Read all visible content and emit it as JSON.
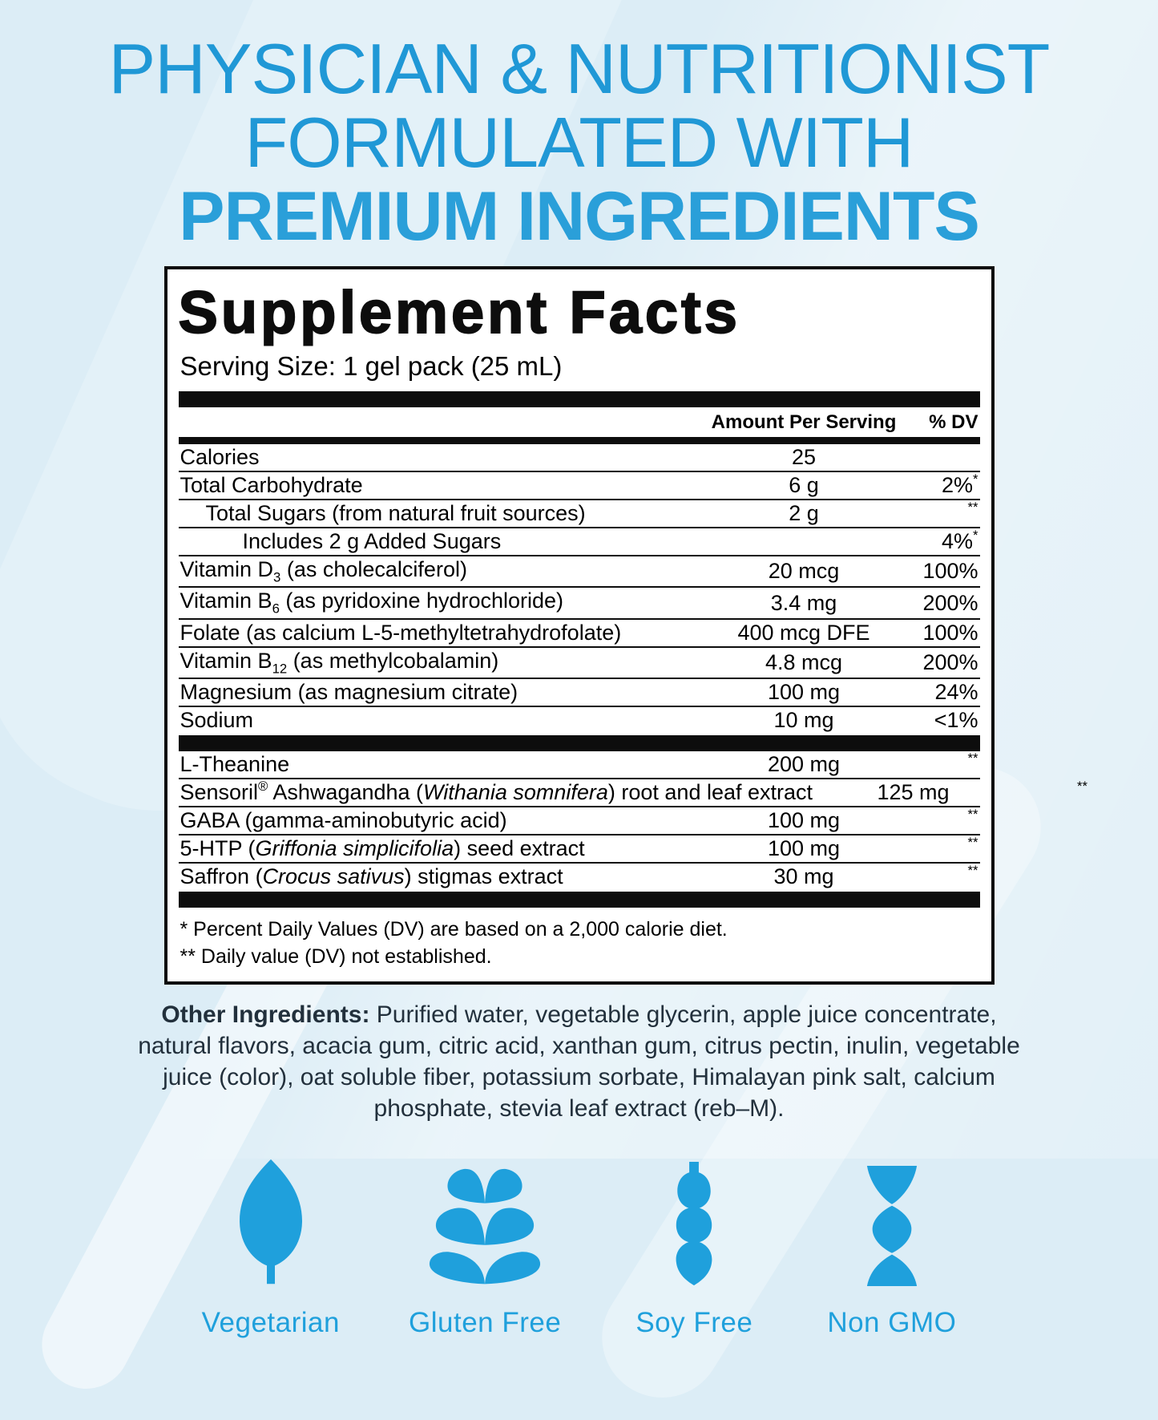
{
  "colors": {
    "accent_blue": "#1fa0dc",
    "heading_blue": "#2098d6",
    "panel_border": "#0d0d0d",
    "background": "#dcedf6",
    "dark_text": "#22303c"
  },
  "heading": {
    "line1": "PHYSICIAN & NUTRITIONIST",
    "line2": "FORMULATED WITH",
    "line3": "PREMIUM INGREDIENTS"
  },
  "supplement_facts": {
    "title": "Supplement Facts",
    "serving_size": "Serving Size: 1 gel pack (25 mL)",
    "columns": {
      "amount": "Amount Per Serving",
      "dv": "% DV"
    },
    "main_rows": [
      {
        "name_parts": [
          {
            "t": "Calories"
          }
        ],
        "amount": "25",
        "dv": "",
        "dv_note": "",
        "indent": 0
      },
      {
        "name_parts": [
          {
            "t": "Total Carbohydrate"
          }
        ],
        "amount": "6 g",
        "dv": "2%",
        "dv_note": "*",
        "indent": 0
      },
      {
        "name_parts": [
          {
            "t": "Total Sugars (from natural fruit sources)"
          }
        ],
        "amount": "2 g",
        "dv": "",
        "dv_note": "**",
        "indent": 1
      },
      {
        "name_parts": [
          {
            "t": "Includes 2 g Added Sugars"
          }
        ],
        "amount": "",
        "dv": "4%",
        "dv_note": "*",
        "indent": 2
      },
      {
        "name_parts": [
          {
            "t": "Vitamin D"
          },
          {
            "t": "3",
            "sub": true
          },
          {
            "t": " (as cholecalciferol)"
          }
        ],
        "amount": "20 mcg",
        "dv": "100%",
        "dv_note": "",
        "indent": 0
      },
      {
        "name_parts": [
          {
            "t": "Vitamin B"
          },
          {
            "t": "6",
            "sub": true
          },
          {
            "t": " (as pyridoxine hydrochloride)"
          }
        ],
        "amount": "3.4 mg",
        "dv": "200%",
        "dv_note": "",
        "indent": 0
      },
      {
        "name_parts": [
          {
            "t": "Folate (as calcium L-5-methyltetrahydrofolate)"
          }
        ],
        "amount": "400 mcg DFE",
        "dv": "100%",
        "dv_note": "",
        "indent": 0
      },
      {
        "name_parts": [
          {
            "t": "Vitamin B"
          },
          {
            "t": "12",
            "sub": true
          },
          {
            "t": " (as methylcobalamin)"
          }
        ],
        "amount": "4.8 mcg",
        "dv": "200%",
        "dv_note": "",
        "indent": 0
      },
      {
        "name_parts": [
          {
            "t": "Magnesium (as magnesium citrate)"
          }
        ],
        "amount": "100 mg",
        "dv": "24%",
        "dv_note": "",
        "indent": 0
      },
      {
        "name_parts": [
          {
            "t": "Sodium"
          }
        ],
        "amount": "10 mg",
        "dv": "<1%",
        "dv_note": "",
        "indent": 0
      }
    ],
    "secondary_rows": [
      {
        "name_parts": [
          {
            "t": "L-Theanine"
          }
        ],
        "amount": "200 mg",
        "dv": "",
        "dv_note": "**",
        "indent": 0
      },
      {
        "name_parts": [
          {
            "t": "Sensoril"
          },
          {
            "t": "®",
            "sup": true
          },
          {
            "t": " Ashwagandha ("
          },
          {
            "t": "Withania somnifera",
            "i": true
          },
          {
            "t": ") root and leaf extract"
          }
        ],
        "amount": "125 mg",
        "dv": "",
        "dv_note": "**",
        "indent": 0
      },
      {
        "name_parts": [
          {
            "t": "GABA (gamma-aminobutyric acid)"
          }
        ],
        "amount": "100 mg",
        "dv": "",
        "dv_note": "**",
        "indent": 0
      },
      {
        "name_parts": [
          {
            "t": "5-HTP ("
          },
          {
            "t": "Griffonia simplicifolia",
            "i": true
          },
          {
            "t": ") seed extract"
          }
        ],
        "amount": "100 mg",
        "dv": "",
        "dv_note": "**",
        "indent": 0
      },
      {
        "name_parts": [
          {
            "t": "Saffron ("
          },
          {
            "t": "Crocus sativus",
            "i": true
          },
          {
            "t": ") stigmas extract"
          }
        ],
        "amount": "30 mg",
        "dv": "",
        "dv_note": "**",
        "indent": 0
      }
    ],
    "footnotes": [
      "* Percent Daily Values (DV) are based on a 2,000 calorie diet.",
      "** Daily value (DV) not established."
    ]
  },
  "other_ingredients": {
    "label": "Other Ingredients:",
    "text": "Purified water, vegetable glycerin, apple juice concentrate, natural flavors, acacia gum, citric acid, xanthan gum, citrus pectin, inulin, vegetable juice (color), oat soluble fiber, potassium sorbate, Himalayan pink salt, calcium phosphate, stevia leaf extract (reb–M)."
  },
  "badges": [
    {
      "icon": "leaf-icon",
      "label": "Vegetarian"
    },
    {
      "icon": "wheat-icon",
      "label": "Gluten Free"
    },
    {
      "icon": "soy-pod-icon",
      "label": "Soy Free"
    },
    {
      "icon": "dna-icon",
      "label": "Non GMO"
    }
  ]
}
